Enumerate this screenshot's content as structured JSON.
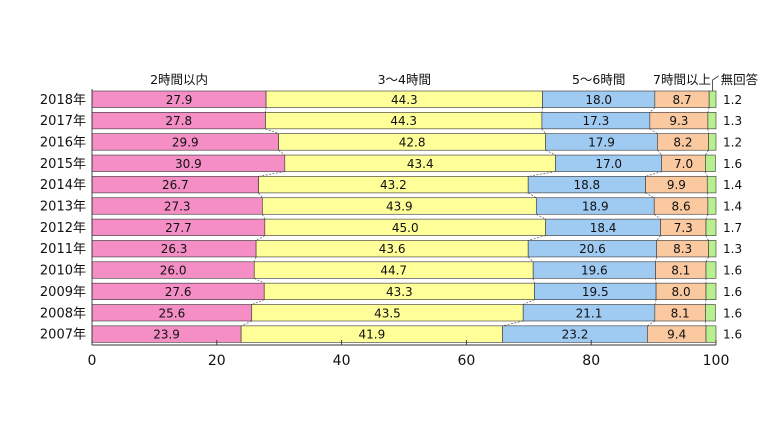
{
  "chart_data": {
    "type": "bar",
    "orientation": "horizontal",
    "stacked": true,
    "categories": [
      "2018年",
      "2017年",
      "2016年",
      "2015年",
      "2014年",
      "2013年",
      "2012年",
      "2011年",
      "2010年",
      "2009年",
      "2008年",
      "2007年"
    ],
    "series": [
      {
        "name": "2時間以内",
        "color": "#f48ec4",
        "values": [
          27.9,
          27.8,
          29.9,
          30.9,
          26.7,
          27.3,
          27.7,
          26.3,
          26.0,
          27.6,
          25.6,
          23.9
        ]
      },
      {
        "name": "3～4時間",
        "color": "#ffff99",
        "values": [
          44.3,
          44.3,
          42.8,
          43.4,
          43.2,
          43.9,
          45.0,
          43.6,
          44.7,
          43.3,
          43.5,
          41.9
        ]
      },
      {
        "name": "5～6時間",
        "color": "#9fcbf3",
        "values": [
          18.0,
          17.3,
          17.9,
          17.0,
          18.8,
          18.9,
          18.4,
          20.6,
          19.6,
          19.5,
          21.1,
          23.2
        ]
      },
      {
        "name": "7時間以上",
        "color": "#fbc9a0",
        "values": [
          8.7,
          9.3,
          8.2,
          7.0,
          9.9,
          8.6,
          7.3,
          8.3,
          8.1,
          8.0,
          8.1,
          9.4
        ]
      },
      {
        "name": "無回答",
        "color": "#b8f090",
        "values": [
          1.2,
          1.3,
          1.2,
          1.6,
          1.4,
          1.4,
          1.7,
          1.3,
          1.6,
          1.6,
          1.6,
          1.6
        ]
      }
    ],
    "value_labels": {
      "2時間以内": [
        "27.9",
        "27.8",
        "29.9",
        "30.9",
        "26.7",
        "27.3",
        "27.7",
        "26.3",
        "26.0",
        "27.6",
        "25.6",
        "23.9"
      ],
      "3～4時間": [
        "44.3",
        "44.3",
        "42.8",
        "43.4",
        "43.2",
        "43.9",
        "45.0",
        "43.6",
        "44.7",
        "43.3",
        "43.5",
        "41.9"
      ],
      "5～6時間": [
        "18.0",
        "17.3",
        "17.9",
        "17.0",
        "18.8",
        "18.9",
        "18.4",
        "20.6",
        "19.6",
        "19.5",
        "21.1",
        "23.2"
      ],
      "7時間以上": [
        "8.7",
        "9.3",
        "8.2",
        "7.0",
        "9.9",
        "8.6",
        "7.3",
        "8.3",
        "8.1",
        "8.0",
        "8.1",
        "9.4"
      ],
      "無回答": [
        "1.2",
        "1.3",
        "1.2",
        "1.6",
        "1.4",
        "1.4",
        "1.7",
        "1.3",
        "1.6",
        "1.6",
        "1.6",
        "1.6"
      ]
    },
    "xlim": [
      0,
      100
    ],
    "xticks": [
      0,
      20,
      40,
      60,
      80,
      100
    ],
    "xtick_labels": [
      "0",
      "20",
      "40",
      "60",
      "80",
      "100"
    ],
    "legend_placement": "top",
    "connector_lines": true,
    "grid": false
  }
}
